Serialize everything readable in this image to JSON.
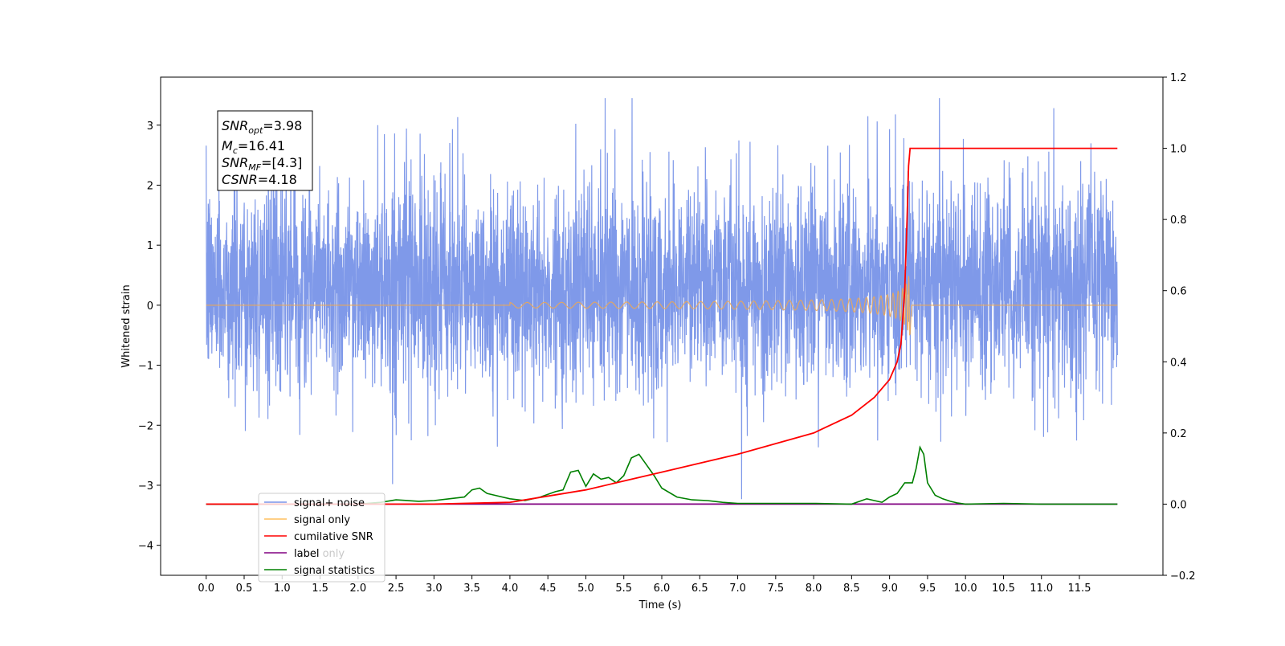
{
  "chart_data": {
    "type": "line",
    "xlabel": "Time (s)",
    "ylabel": "Whitened strain",
    "xlim": [
      -0.6,
      12.6
    ],
    "ylim": [
      -4.5,
      3.8
    ],
    "y2lim": [
      -0.2,
      1.2
    ],
    "xticks": [
      "0.0",
      "0.5",
      "1.0",
      "1.5",
      "2.0",
      "2.5",
      "3.0",
      "3.5",
      "4.0",
      "4.5",
      "5.0",
      "5.5",
      "6.0",
      "6.5",
      "7.0",
      "7.5",
      "8.0",
      "8.5",
      "9.0",
      "9.5",
      "10.0",
      "10.5",
      "11.0",
      "11.5"
    ],
    "yticks": [
      "3",
      "2",
      "1",
      "0",
      "−1",
      "−2",
      "−3",
      "−4"
    ],
    "y2ticks": [
      "1.2",
      "1.0",
      "0.8",
      "0.6",
      "0.4",
      "0.2",
      "0.0",
      "−0.2"
    ],
    "grid": false,
    "legend_position": "lower-left",
    "annotation": {
      "snr_opt_base": "SNR",
      "snr_opt_sub": "opt",
      "snr_opt_val": "=3.98",
      "mc_base": "M",
      "mc_sub": "c",
      "mc_val": "=16.41",
      "snr_mf_base": "SNR",
      "snr_mf_sub": "MF",
      "snr_mf_val": "=[4.3]",
      "csnr_base": "CSNR",
      "csnr_val": "=4.18"
    },
    "series": [
      {
        "name": "signal+ noise",
        "color": "#7893e8",
        "axis": "left",
        "description_values": {
          "x_range": [
            0.0,
            12.0
          ],
          "typical_envelope": [
            -1.7,
            2.3
          ],
          "peak_max": 3.45,
          "peak_min": -3.5
        }
      },
      {
        "name": "signal only",
        "color": "#ffbf5e",
        "axis": "left",
        "description_values": {
          "chirp_start": 4.0,
          "merger_time": 9.27,
          "peak_amplitude": 0.65
        }
      },
      {
        "name": "cumilative SNR",
        "color": "#ff0000",
        "axis": "right",
        "x": [
          0.0,
          3.0,
          4.0,
          5.0,
          6.0,
          7.0,
          8.0,
          8.5,
          8.8,
          9.0,
          9.1,
          9.15,
          9.2,
          9.23,
          9.25,
          9.27,
          10.0,
          12.0
        ],
        "values": [
          0.0,
          0.0,
          0.005,
          0.04,
          0.09,
          0.14,
          0.2,
          0.25,
          0.3,
          0.35,
          0.4,
          0.45,
          0.6,
          0.8,
          0.95,
          1.0,
          1.0,
          1.0
        ]
      },
      {
        "name": "label",
        "color": "#800080",
        "axis": "right",
        "x": [
          0.0,
          12.0
        ],
        "values": [
          0.0,
          0.0
        ]
      },
      {
        "name": "label only",
        "color": "#ffffff",
        "axis": "right",
        "x": [],
        "values": []
      },
      {
        "name": "signal statistics",
        "color": "#008000",
        "axis": "right",
        "x": [
          0.0,
          1.0,
          2.0,
          2.3,
          2.5,
          2.8,
          3.0,
          3.2,
          3.4,
          3.5,
          3.6,
          3.7,
          3.8,
          4.0,
          4.2,
          4.4,
          4.6,
          4.7,
          4.8,
          4.9,
          5.0,
          5.1,
          5.2,
          5.3,
          5.4,
          5.5,
          5.6,
          5.7,
          5.8,
          5.9,
          6.0,
          6.2,
          6.4,
          6.6,
          6.8,
          7.0,
          7.5,
          8.0,
          8.5,
          8.7,
          8.8,
          8.9,
          9.0,
          9.1,
          9.2,
          9.3,
          9.35,
          9.4,
          9.45,
          9.5,
          9.6,
          9.7,
          9.8,
          9.9,
          10.0,
          10.5,
          11.0,
          11.5,
          12.0
        ],
        "values": [
          0.0,
          0.0,
          0.0,
          0.005,
          0.012,
          0.008,
          0.01,
          0.015,
          0.02,
          0.04,
          0.045,
          0.03,
          0.025,
          0.015,
          0.01,
          0.02,
          0.035,
          0.04,
          0.09,
          0.095,
          0.05,
          0.085,
          0.07,
          0.075,
          0.06,
          0.08,
          0.13,
          0.14,
          0.11,
          0.08,
          0.045,
          0.02,
          0.012,
          0.01,
          0.005,
          0.002,
          0.002,
          0.002,
          0.0,
          0.015,
          0.01,
          0.005,
          0.02,
          0.03,
          0.06,
          0.06,
          0.1,
          0.16,
          0.14,
          0.06,
          0.025,
          0.015,
          0.008,
          0.003,
          0.0,
          0.002,
          0.0,
          0.0,
          0.0
        ]
      }
    ]
  }
}
